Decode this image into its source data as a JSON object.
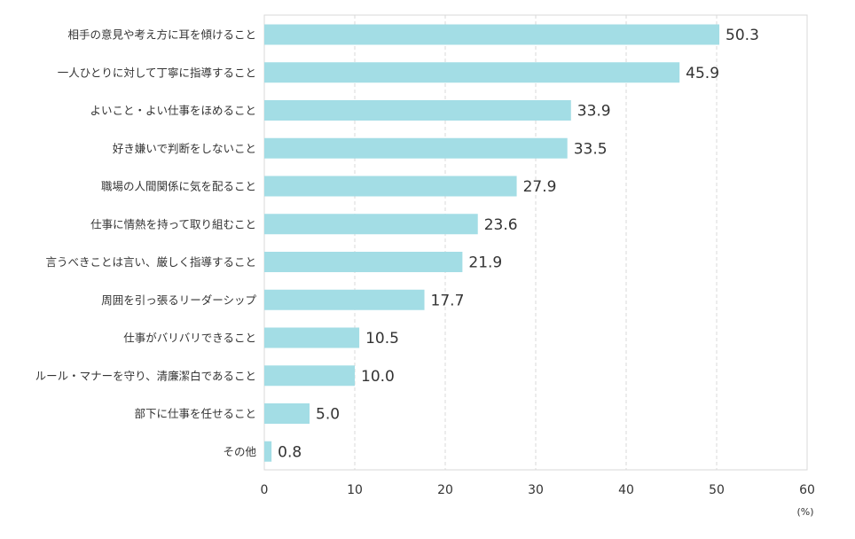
{
  "chart_data": {
    "type": "bar",
    "orientation": "horizontal",
    "categories": [
      "相手の意見や考え方に耳を傾けること",
      "一人ひとりに対して丁寧に指導すること",
      "よいこと・よい仕事をほめること",
      "好き嫌いで判断をしないこと",
      "職場の人間関係に気を配ること",
      "仕事に情熱を持って取り組むこと",
      "言うべきことは言い、厳しく指導すること",
      "周囲を引っ張るリーダーシップ",
      "仕事がバリバリできること",
      "ルール・マナーを守り、清廉潔白であること",
      "部下に仕事を任せること",
      "その他"
    ],
    "values": [
      50.3,
      45.9,
      33.9,
      33.5,
      27.9,
      23.6,
      21.9,
      17.7,
      10.5,
      10.0,
      5.0,
      0.8
    ],
    "value_labels": [
      "50.3",
      "45.9",
      "33.9",
      "33.5",
      "27.9",
      "23.6",
      "21.9",
      "17.7",
      "10.5",
      "10.0",
      "5.0",
      "0.8"
    ],
    "xlim": [
      0,
      60
    ],
    "xticks": [
      0,
      10,
      20,
      30,
      40,
      50,
      60
    ],
    "xtick_labels": [
      "0",
      "10",
      "20",
      "30",
      "40",
      "50",
      "60"
    ],
    "xunit": "(%)",
    "grid": "vertical-dashed",
    "bar_color": "#a3dde5"
  }
}
